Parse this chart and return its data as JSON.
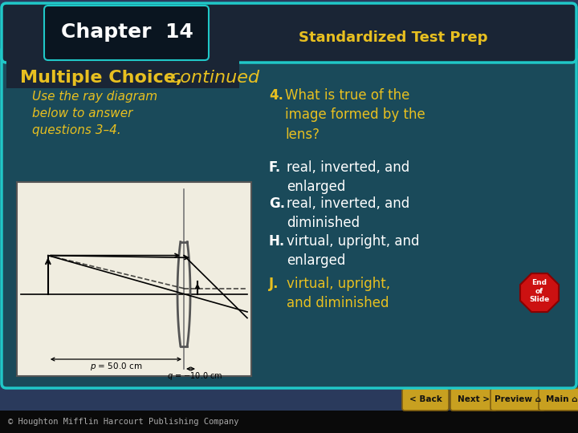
{
  "bg_outer": "#2a3a5c",
  "bg_header": "#1a2535",
  "bg_main": "#1a4a5a",
  "bg_chapter_box": "#0a1520",
  "bg_footer": "#0a0a0a",
  "chapter_title": "Chapter  14",
  "header_right": "Standardized Test Prep",
  "section_bold": "Multiple Choice,",
  "section_italic": " continued",
  "instruction": "Use the ray diagram\nbelow to answer\nquestions 3–4.",
  "q4_num": "4.",
  "q4_text": "What is true of the\nimage formed by the\nlens?",
  "answers": [
    {
      "letter": "F.",
      "text": "real, inverted, and\nenlarged",
      "yellow": false
    },
    {
      "letter": "G.",
      "text": "real, inverted, and\ndiminished",
      "yellow": false
    },
    {
      "letter": "H.",
      "text": "virtual, upright, and\nenlarged",
      "yellow": false
    },
    {
      "letter": "J.",
      "text": "virtual, upright,\nand diminished",
      "yellow": true
    }
  ],
  "footer_text": "© Houghton Mifflin Harcourt Publishing Company",
  "yellow": "#e8c020",
  "white": "#ffffff",
  "end_badge_color": "#cc1111",
  "nav_bg": "#c8a020",
  "nav_border": "#806010",
  "nav_text": "#111111",
  "nav_buttons": [
    "< Back",
    "Next >",
    "Preview ⌂",
    "Main ⌂"
  ],
  "teal_border": "#20c8c8",
  "diagram_bg": "#f0ede0"
}
